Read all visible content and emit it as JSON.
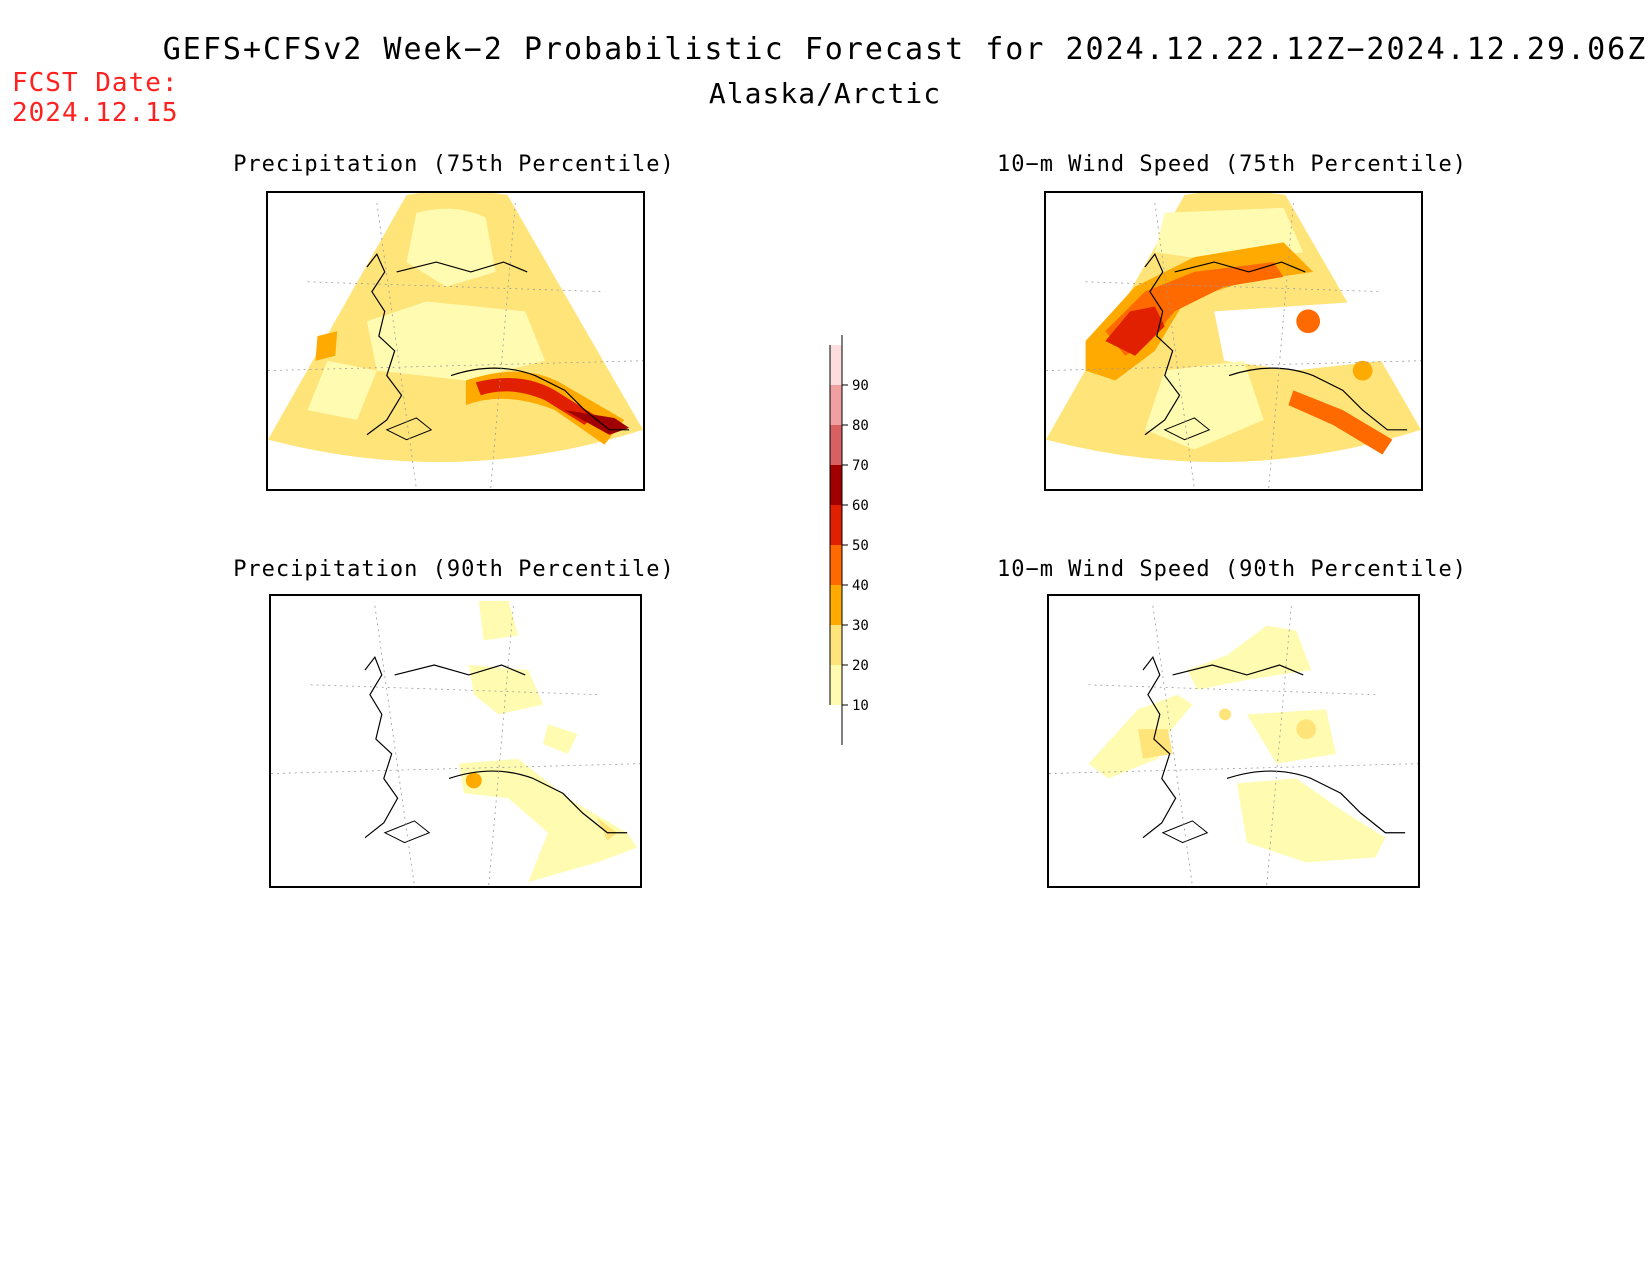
{
  "header": {
    "title": "GEFS+CFSv2 Week−2 Probabilistic Forecast for 2024.12.22.12Z−2024.12.29.06Z",
    "region": "Alaska/Arctic",
    "fcst_label": "FCST Date:",
    "fcst_date": "2024.12.15"
  },
  "panels": [
    {
      "id": "precip75",
      "title": "Precipitation (75th Percentile)"
    },
    {
      "id": "wind75",
      "title": "10−m Wind Speed (75th Percentile)"
    },
    {
      "id": "precip90",
      "title": "Precipitation (90th Percentile)"
    },
    {
      "id": "wind90",
      "title": "10−m Wind Speed (90th Percentile)"
    }
  ],
  "colorbar": {
    "levels": [
      "10",
      "20",
      "30",
      "40",
      "50",
      "60",
      "70",
      "80",
      "90"
    ],
    "colors": {
      "10": "#fffbb0",
      "20": "#ffe47a",
      "30": "#ffaa00",
      "40": "#ff6a00",
      "50": "#e02000",
      "60": "#a00000",
      "70": "#d86060",
      "80": "#f0a0a0",
      "90": "#fcdcdc"
    }
  }
}
